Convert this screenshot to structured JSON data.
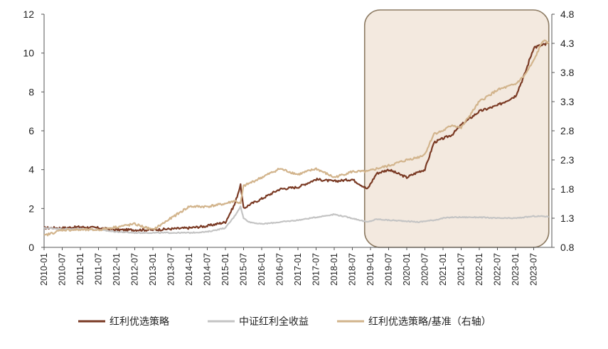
{
  "chart_data": {
    "type": "line",
    "title": "",
    "left_axis": {
      "ylim": [
        0,
        12
      ],
      "ticks": [
        "0",
        "2",
        "4",
        "6",
        "8",
        "10",
        "12"
      ]
    },
    "right_axis": {
      "ylim": [
        0.8,
        4.8
      ],
      "ticks": [
        "0.8",
        "1.3",
        "1.8",
        "2.3",
        "2.8",
        "3.3",
        "3.8",
        "4.3",
        "4.8"
      ]
    },
    "x_ticks": [
      "2010-01",
      "2010-07",
      "2011-01",
      "2011-07",
      "2012-01",
      "2012-07",
      "2013-01",
      "2013-07",
      "2014-01",
      "2014-07",
      "2015-01",
      "2015-07",
      "2016-01",
      "2016-07",
      "2017-01",
      "2017-07",
      "2018-01",
      "2018-07",
      "2019-01",
      "2019-07",
      "2020-01",
      "2020-07",
      "2021-01",
      "2021-07",
      "2022-01",
      "2022-07",
      "2023-01",
      "2023-07"
    ],
    "grid": false,
    "legend_position": "bottom",
    "highlight_region": {
      "from": "2018-12",
      "to": "2023-12",
      "color": "#f3e9df",
      "border": "#8c7a62"
    },
    "series": [
      {
        "name": "红利优选策略",
        "axis": "left",
        "color": "#7a3a24",
        "x": [
          "2010-01",
          "2010-07",
          "2011-01",
          "2011-07",
          "2012-01",
          "2012-07",
          "2013-01",
          "2013-07",
          "2014-01",
          "2014-07",
          "2015-01",
          "2015-04",
          "2015-06",
          "2015-07",
          "2015-09",
          "2016-01",
          "2016-07",
          "2017-01",
          "2017-07",
          "2018-01",
          "2018-07",
          "2018-12",
          "2019-03",
          "2019-07",
          "2020-01",
          "2020-05",
          "2020-07",
          "2020-10",
          "2021-01",
          "2021-04",
          "2021-07",
          "2022-01",
          "2022-07",
          "2023-01",
          "2023-04",
          "2023-07",
          "2023-10",
          "2023-12"
        ],
        "values": [
          1.0,
          1.0,
          1.05,
          1.0,
          0.9,
          0.9,
          0.9,
          0.95,
          1.0,
          1.1,
          1.3,
          2.2,
          3.2,
          2.0,
          2.2,
          2.5,
          3.0,
          3.1,
          3.5,
          3.4,
          3.5,
          3.0,
          3.8,
          4.0,
          3.6,
          3.9,
          4.0,
          5.4,
          5.6,
          5.8,
          6.3,
          7.0,
          7.3,
          7.8,
          8.9,
          10.3,
          10.4,
          10.5
        ]
      },
      {
        "name": "中证红利全收益",
        "axis": "left",
        "color": "#c4c4c4",
        "x": [
          "2010-01",
          "2010-07",
          "2011-01",
          "2011-07",
          "2012-01",
          "2012-07",
          "2013-01",
          "2013-07",
          "2014-01",
          "2014-07",
          "2015-01",
          "2015-04",
          "2015-06",
          "2015-07",
          "2015-09",
          "2016-01",
          "2016-07",
          "2017-01",
          "2017-07",
          "2018-01",
          "2018-07",
          "2018-12",
          "2019-03",
          "2019-07",
          "2020-01",
          "2020-05",
          "2020-07",
          "2020-10",
          "2021-01",
          "2021-04",
          "2021-07",
          "2022-01",
          "2022-07",
          "2023-01",
          "2023-04",
          "2023-07",
          "2023-10",
          "2023-12"
        ],
        "values": [
          1.0,
          0.95,
          0.95,
          0.9,
          0.8,
          0.75,
          0.75,
          0.75,
          0.75,
          0.8,
          1.0,
          1.6,
          2.1,
          1.5,
          1.3,
          1.2,
          1.3,
          1.4,
          1.55,
          1.7,
          1.5,
          1.3,
          1.45,
          1.4,
          1.35,
          1.3,
          1.35,
          1.4,
          1.5,
          1.55,
          1.55,
          1.55,
          1.5,
          1.5,
          1.55,
          1.6,
          1.6,
          1.58
        ]
      },
      {
        "name": "红利优选策略/基准（右轴）",
        "axis": "right",
        "color": "#d2b48c",
        "x": [
          "2010-01",
          "2010-07",
          "2011-01",
          "2011-07",
          "2012-01",
          "2012-07",
          "2013-01",
          "2013-07",
          "2014-01",
          "2014-07",
          "2015-01",
          "2015-04",
          "2015-06",
          "2015-07",
          "2015-09",
          "2016-01",
          "2016-07",
          "2017-01",
          "2017-07",
          "2018-01",
          "2018-07",
          "2018-12",
          "2019-03",
          "2019-07",
          "2020-01",
          "2020-05",
          "2020-07",
          "2020-10",
          "2021-01",
          "2021-04",
          "2021-07",
          "2022-01",
          "2022-07",
          "2023-01",
          "2023-04",
          "2023-07",
          "2023-10",
          "2023-12"
        ],
        "values": [
          1.0,
          1.1,
          1.1,
          1.1,
          1.15,
          1.2,
          1.1,
          1.3,
          1.5,
          1.5,
          1.55,
          1.6,
          1.55,
          1.85,
          1.9,
          2.0,
          2.15,
          2.05,
          2.15,
          2.0,
          2.1,
          2.1,
          2.15,
          2.2,
          2.3,
          2.35,
          2.4,
          2.75,
          2.8,
          2.9,
          2.85,
          3.3,
          3.5,
          3.6,
          3.75,
          4.0,
          4.35,
          4.3
        ]
      }
    ]
  },
  "legend": [
    {
      "label": "红利优选策略",
      "color": "#7a3a24"
    },
    {
      "label": "中证红利全收益",
      "color": "#c4c4c4"
    },
    {
      "label": "红利优选策略/基准（右轴）",
      "color": "#d2b48c"
    }
  ]
}
